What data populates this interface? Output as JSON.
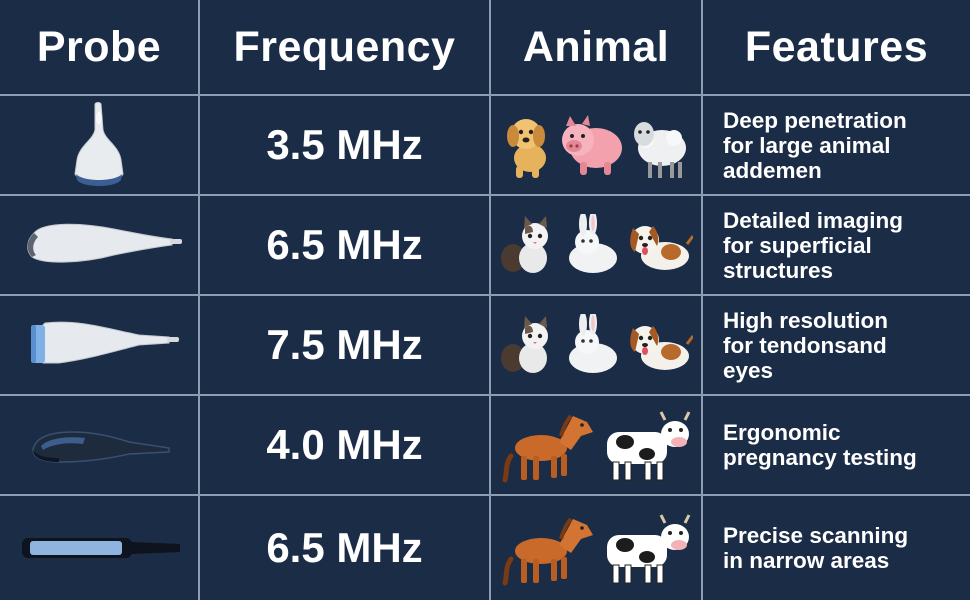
{
  "headers": {
    "probe": "Probe",
    "frequency": "Frequency",
    "animal": "Animal",
    "features": "Features"
  },
  "rows": [
    {
      "probe_icon": "convex-probe-icon",
      "frequency": "3.5 MHz",
      "animals": [
        "dog-icon",
        "pig-icon",
        "sheep-icon"
      ],
      "features": [
        "Deep penetration",
        "for large animal",
        "addemen"
      ]
    },
    {
      "probe_icon": "microconvex-probe-icon",
      "frequency": "6.5 MHz",
      "animals": [
        "cat-icon",
        "rabbit-icon",
        "puppy-icon"
      ],
      "features": [
        "Detailed imaging",
        "for superficial",
        "structures"
      ]
    },
    {
      "probe_icon": "linear-probe-icon",
      "frequency": "7.5 MHz",
      "animals": [
        "cat-icon",
        "rabbit-icon",
        "puppy-icon"
      ],
      "features": [
        "High resolution",
        "for tendonsand",
        "eyes"
      ]
    },
    {
      "probe_icon": "rectal-probe-icon",
      "frequency": "4.0 MHz",
      "animals": [
        "horse-icon",
        "cow-icon"
      ],
      "features": [
        "Ergonomic",
        "pregnancy testing"
      ]
    },
    {
      "probe_icon": "rectal-linear-probe-icon",
      "frequency": "6.5 MHz",
      "animals": [
        "horse-icon",
        "cow-icon"
      ],
      "features": [
        "Precise scanning",
        "in narrow areas"
      ]
    }
  ],
  "colors": {
    "background": "#1b2c47",
    "grid": "#8f9db3",
    "text": "#ffffff"
  }
}
